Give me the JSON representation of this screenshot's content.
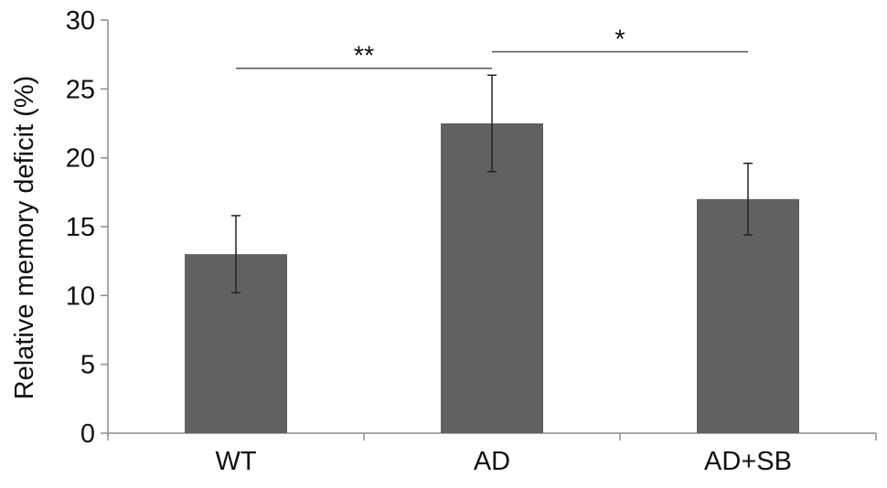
{
  "chart_data": {
    "type": "bar",
    "title": "",
    "xlabel": "",
    "ylabel": "Relative memory deficit (%)",
    "ylim": [
      0,
      30
    ],
    "yticks": [
      0,
      5,
      10,
      15,
      20,
      25,
      30
    ],
    "categories": [
      "WT",
      "AD",
      "AD+SB"
    ],
    "values": [
      13.0,
      22.5,
      17.0
    ],
    "errors": [
      2.8,
      3.5,
      2.6
    ],
    "grid": false,
    "legend": "none",
    "bar_color": "#616161",
    "significance": [
      {
        "from": "WT",
        "to": "AD",
        "label": "**",
        "y": 26.5
      },
      {
        "from": "AD",
        "to": "AD+SB",
        "label": "*",
        "y": 27.7
      }
    ]
  }
}
